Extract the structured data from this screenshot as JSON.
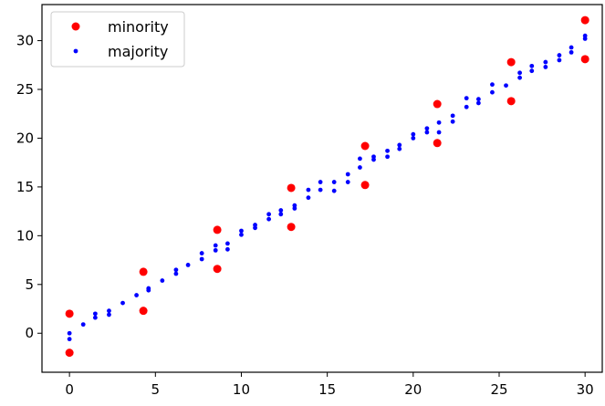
{
  "chart_data": {
    "type": "scatter",
    "xlim": [
      -1.6,
      31.0
    ],
    "ylim": [
      -4.0,
      33.7
    ],
    "x_ticks": [
      0,
      5,
      10,
      15,
      20,
      25,
      30
    ],
    "y_ticks": [
      0,
      5,
      10,
      15,
      20,
      25,
      30
    ],
    "grid": false,
    "legend_position": "top-left",
    "series": [
      {
        "name": "minority",
        "color": "#ff0000",
        "marker": "large-dot",
        "x": [
          0,
          0,
          4.3,
          4.3,
          8.6,
          8.6,
          12.9,
          12.9,
          17.2,
          17.2,
          21.4,
          21.4,
          25.7,
          25.7,
          30,
          30
        ],
        "y": [
          2.0,
          -2.0,
          6.3,
          2.3,
          10.6,
          6.6,
          14.9,
          10.9,
          19.2,
          15.2,
          23.5,
          19.5,
          27.8,
          23.8,
          32.1,
          28.1
        ]
      },
      {
        "name": "majority",
        "color": "#0000ff",
        "marker": "small-dot",
        "x": [
          0,
          0,
          0.8,
          1.5,
          1.5,
          2.3,
          2.3,
          3.1,
          3.9,
          4.6,
          4.6,
          5.4,
          6.2,
          6.2,
          6.9,
          7.7,
          7.7,
          8.5,
          8.5,
          9.2,
          9.2,
          10,
          10,
          10.8,
          10.8,
          11.6,
          11.6,
          12.3,
          12.3,
          13.1,
          13.1,
          13.9,
          13.9,
          14.6,
          14.6,
          15.4,
          15.4,
          16.2,
          16.2,
          16.9,
          16.9,
          17.7,
          17.7,
          18.5,
          18.5,
          19.2,
          19.2,
          20,
          20,
          20.8,
          20.8,
          21.5,
          21.5,
          22.3,
          22.3,
          23.1,
          23.1,
          23.8,
          23.8,
          24.6,
          24.6,
          25.4,
          26.2,
          26.2,
          26.9,
          26.9,
          27.7,
          27.7,
          28.5,
          28.5,
          29.2,
          29.2,
          30,
          30
        ],
        "y": [
          0,
          -0.6,
          0.9,
          2.0,
          1.6,
          2.3,
          1.9,
          3.1,
          3.9,
          4.6,
          4.4,
          5.4,
          6.5,
          6.1,
          7.0,
          8.2,
          7.6,
          9.0,
          8.5,
          9.2,
          8.6,
          10.5,
          10.1,
          11.1,
          10.8,
          12.2,
          11.7,
          12.6,
          12.2,
          13.1,
          12.8,
          14.7,
          13.9,
          15.5,
          14.7,
          15.5,
          14.6,
          16.3,
          15.5,
          17.9,
          17.0,
          18.1,
          17.8,
          18.7,
          18.1,
          19.3,
          18.9,
          20.4,
          20.0,
          21.0,
          20.6,
          21.6,
          20.6,
          22.3,
          21.7,
          24.1,
          23.2,
          24.0,
          23.6,
          25.5,
          24.7,
          25.4,
          26.7,
          26.2,
          27.4,
          26.9,
          27.8,
          27.3,
          28.5,
          28.0,
          29.3,
          28.8,
          30.5,
          30.2
        ]
      }
    ]
  }
}
